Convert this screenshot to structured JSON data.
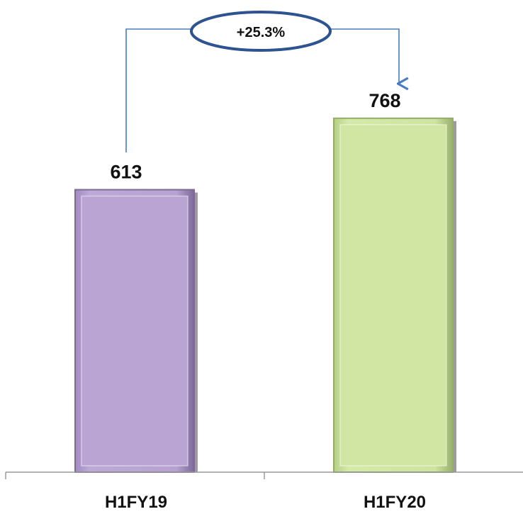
{
  "chart_data": {
    "type": "bar",
    "categories": [
      "H1FY19",
      "H1FY20"
    ],
    "values": [
      613,
      768
    ],
    "data_labels": [
      "613",
      "768"
    ],
    "ylim": [
      0,
      1000
    ],
    "grid": false,
    "bar_colors": [
      "#b9a4d3",
      "#d1e6a3"
    ],
    "change_annotation": "+25.3%",
    "annotation_color": "#2d5390",
    "arrow_color": "#4a7cc0"
  }
}
